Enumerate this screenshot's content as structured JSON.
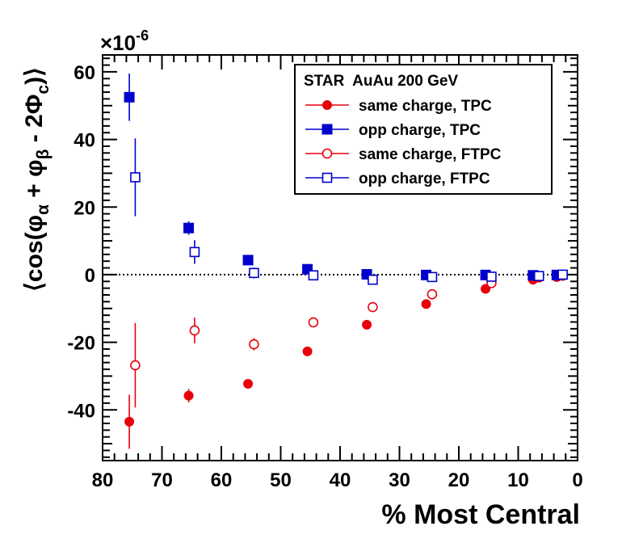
{
  "chart_data": {
    "type": "scatter",
    "xlabel": "% Most Central",
    "ylabel": "⟨cos(φα + φβ - 2Φc)⟩",
    "ylabel_parts": {
      "open": "⟨cos(φ",
      "sub_alpha": "α",
      "plus": " + φ",
      "sub_beta": "β",
      "minus": " - 2Φ",
      "sub_c": "c",
      "close": ")⟩"
    },
    "exponent_label": "×10",
    "exponent_power": "-6",
    "xlim": [
      80,
      0
    ],
    "ylim": [
      -55,
      65
    ],
    "x_reversed": true,
    "xticks": [
      80,
      70,
      60,
      50,
      40,
      30,
      20,
      10,
      0
    ],
    "yticks": [
      60,
      40,
      20,
      0,
      -20,
      -40
    ],
    "legend_title": "STAR  AuAu 200 GeV",
    "legend_position": "top-right",
    "zero_line": "dotted",
    "series": [
      {
        "name": "same charge, TPC",
        "color": "#e8000b",
        "marker": "filled-circle",
        "points": [
          {
            "x": 75.5,
            "y": -43.5,
            "err": 8.0
          },
          {
            "x": 65.5,
            "y": -35.8,
            "err": 2.0
          },
          {
            "x": 55.5,
            "y": -32.3,
            "err": 0.8
          },
          {
            "x": 45.5,
            "y": -22.7,
            "err": 0.5
          },
          {
            "x": 35.5,
            "y": -14.8,
            "err": 0.4
          },
          {
            "x": 25.5,
            "y": -8.7,
            "err": 0.3
          },
          {
            "x": 15.5,
            "y": -4.2,
            "err": 0.2
          },
          {
            "x": 7.5,
            "y": -1.5,
            "err": 0.2
          },
          {
            "x": 3.5,
            "y": -0.7,
            "err": 0.2
          }
        ]
      },
      {
        "name": "opp charge, TPC",
        "color": "#0000cc",
        "marker": "filled-square",
        "points": [
          {
            "x": 75.5,
            "y": 52.5,
            "err": 7.0
          },
          {
            "x": 65.5,
            "y": 13.8,
            "err": 2.0
          },
          {
            "x": 55.5,
            "y": 4.3,
            "err": 0.8
          },
          {
            "x": 45.5,
            "y": 1.6,
            "err": 0.5
          },
          {
            "x": 35.5,
            "y": 0.1,
            "err": 0.3
          },
          {
            "x": 25.5,
            "y": -0.1,
            "err": 0.3
          },
          {
            "x": 15.5,
            "y": -0.1,
            "err": 0.2
          },
          {
            "x": 7.5,
            "y": -0.2,
            "err": 0.2
          },
          {
            "x": 3.5,
            "y": -0.1,
            "err": 0.2
          }
        ]
      },
      {
        "name": "same charge, FTPC",
        "color": "#e8000b",
        "marker": "open-circle",
        "points": [
          {
            "x": 74.5,
            "y": -26.8,
            "err": 12.5
          },
          {
            "x": 64.5,
            "y": -16.5,
            "err": 3.8
          },
          {
            "x": 54.5,
            "y": -20.6,
            "err": 1.8
          },
          {
            "x": 44.5,
            "y": -14.1,
            "err": 1.0
          },
          {
            "x": 34.5,
            "y": -9.6,
            "err": 0.8
          },
          {
            "x": 24.5,
            "y": -5.8,
            "err": 0.6
          },
          {
            "x": 14.5,
            "y": -2.5,
            "err": 0.5
          },
          {
            "x": 6.5,
            "y": -0.8,
            "err": 0.3
          },
          {
            "x": 2.5,
            "y": -0.3,
            "err": 0.3
          }
        ]
      },
      {
        "name": "opp charge, FTPC",
        "color": "#0000cc",
        "marker": "open-square",
        "points": [
          {
            "x": 74.5,
            "y": 28.8,
            "err": 11.5
          },
          {
            "x": 64.5,
            "y": 6.7,
            "err": 3.5
          },
          {
            "x": 54.5,
            "y": 0.5,
            "err": 1.6
          },
          {
            "x": 44.5,
            "y": -0.2,
            "err": 1.0
          },
          {
            "x": 34.5,
            "y": -1.5,
            "err": 0.8
          },
          {
            "x": 24.5,
            "y": -0.7,
            "err": 0.6
          },
          {
            "x": 14.5,
            "y": -0.6,
            "err": 0.5
          },
          {
            "x": 6.5,
            "y": -0.4,
            "err": 0.3
          },
          {
            "x": 2.5,
            "y": 0.0,
            "err": 0.3
          }
        ]
      }
    ]
  }
}
